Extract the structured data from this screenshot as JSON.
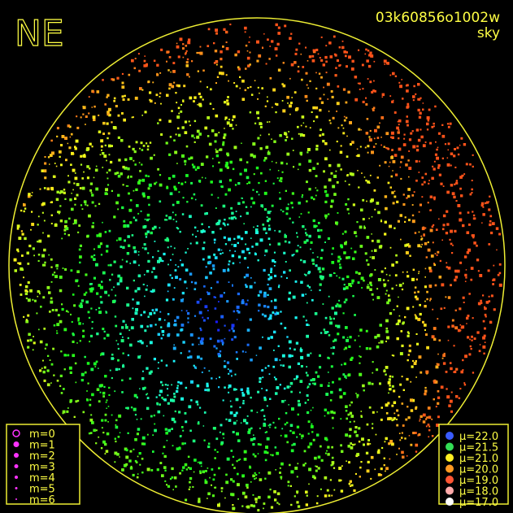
{
  "corner_label": "NE",
  "image_id": "03k60856o1002w",
  "image_kind": "sky",
  "magnitude_legend": [
    "m=0",
    "m=1",
    "m=2",
    "m=3",
    "m=4",
    "m=5",
    "m=6"
  ],
  "brightness_legend": [
    {
      "label": "μ=22.0",
      "color": "#3a5cff"
    },
    {
      "label": "μ=21.5",
      "color": "#33dd55"
    },
    {
      "label": "μ=21.0",
      "color": "#ffee22"
    },
    {
      "label": "μ=20.0",
      "color": "#ff9922"
    },
    {
      "label": "μ=19.0",
      "color": "#ff5533"
    },
    {
      "label": "μ=18.0",
      "color": "#ffaaaa"
    },
    {
      "label": "μ=17.0",
      "color": "#ffffff"
    }
  ]
}
